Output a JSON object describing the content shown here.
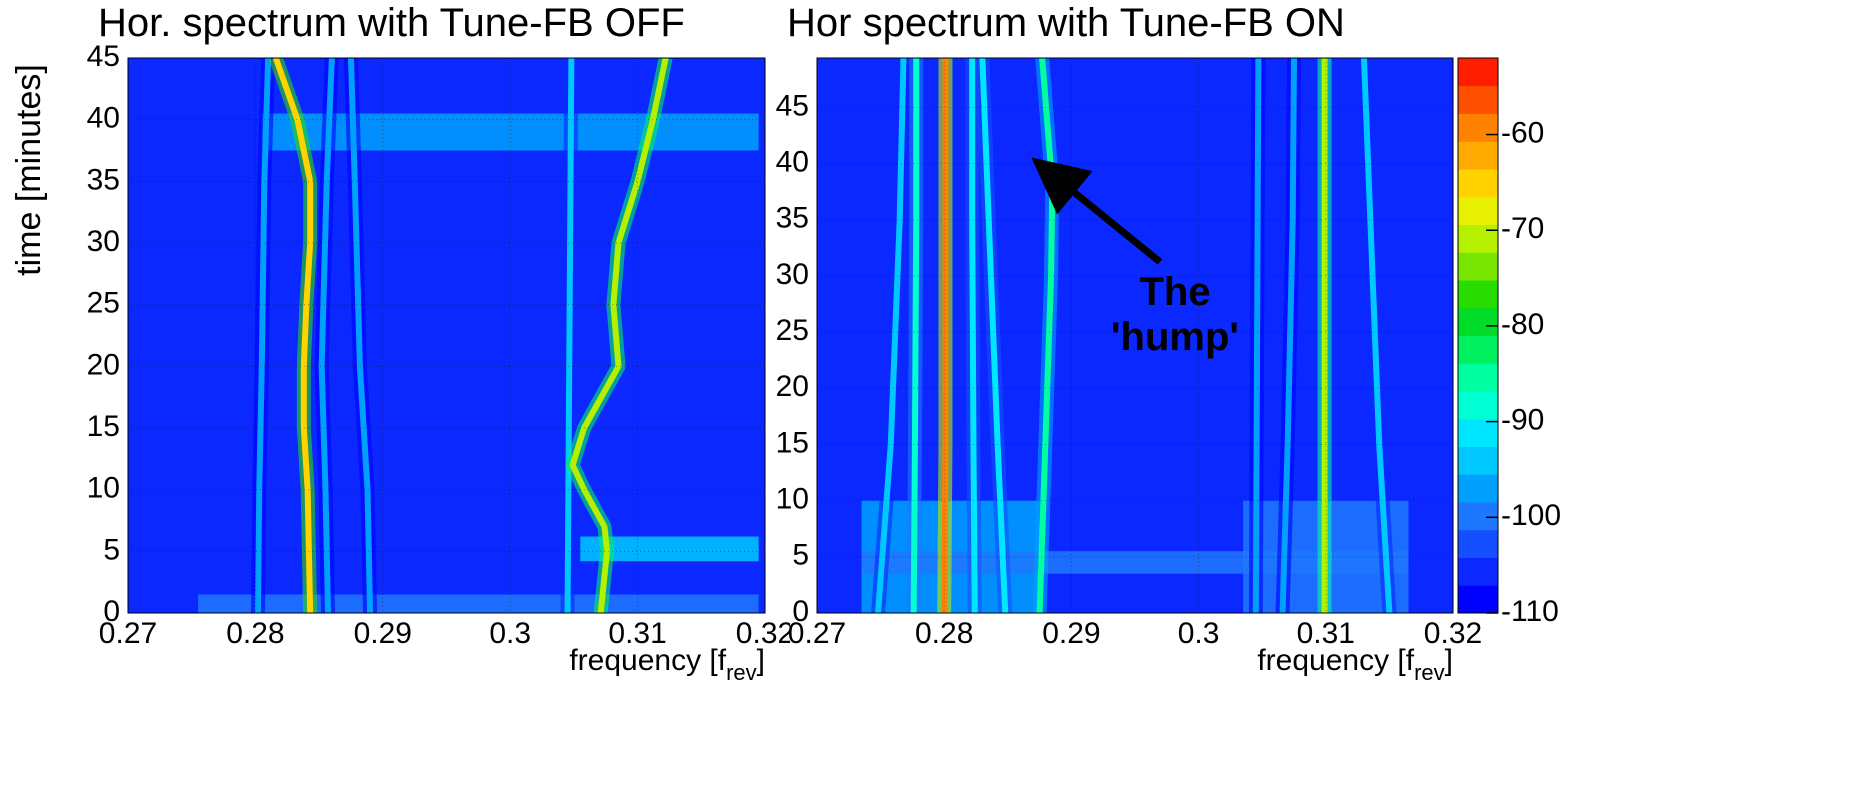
{
  "chart_data": [
    {
      "type": "spectrogram",
      "title": "Hor. spectrum with Tune-FB OFF",
      "x_label": "frequency [f",
      "x_label_sub": "rev",
      "x_label_end": "]",
      "y_label": "time [minutes]",
      "xlim": [
        0.27,
        0.32
      ],
      "xticks": [
        0.27,
        0.28,
        0.29,
        0.3,
        0.31,
        0.32
      ],
      "ylim": [
        0,
        45
      ],
      "yticks": [
        0,
        5,
        10,
        15,
        20,
        25,
        30,
        35,
        40,
        45
      ],
      "grid": true,
      "background_level": -106,
      "bands": [
        {
          "x": [
            0.2805,
            0.3195
          ],
          "y": [
            37.5,
            40.5
          ],
          "level": -98
        },
        {
          "x": [
            0.3055,
            0.3195
          ],
          "y": [
            4.2,
            6.2
          ],
          "level": -93
        },
        {
          "x": [
            0.2755,
            0.3195
          ],
          "y": [
            0,
            1.5
          ],
          "level": -100
        }
      ],
      "traces": [
        {
          "x": [
            0.2802,
            0.2803,
            0.2805,
            0.2807,
            0.281
          ],
          "y": [
            0,
            10,
            20,
            35,
            45
          ],
          "level": -96
        },
        {
          "x": [
            0.2857,
            0.2855,
            0.2852,
            0.2856,
            0.286
          ],
          "y": [
            0,
            10,
            20,
            35,
            45
          ],
          "level": -97
        },
        {
          "x": [
            0.289,
            0.2888,
            0.2882,
            0.2878,
            0.2875
          ],
          "y": [
            0,
            10,
            20,
            35,
            45
          ],
          "level": -98
        },
        {
          "x": [
            0.3045,
            0.3046,
            0.3047,
            0.3048
          ],
          "y": [
            0,
            15,
            30,
            45
          ],
          "level": -93
        },
        {
          "x": [
            0.2843,
            0.2841,
            0.2838,
            0.2838,
            0.284,
            0.2843,
            0.2843,
            0.2833,
            0.2816
          ],
          "y": [
            0,
            10,
            15,
            20,
            25,
            30,
            35,
            40,
            45
          ],
          "level": -66
        },
        {
          "x": [
            0.3071,
            0.3076,
            0.3074,
            0.3058,
            0.3049,
            0.3058,
            0.3085,
            0.3081,
            0.3085,
            0.31,
            0.3112,
            0.3122
          ],
          "y": [
            0,
            5,
            7,
            10,
            12,
            15,
            20,
            25,
            30,
            35,
            40,
            45
          ],
          "level": -70
        }
      ]
    },
    {
      "type": "spectrogram",
      "title": "Hor spectrum with Tune-FB ON",
      "x_label": "frequency [f",
      "x_label_sub": "rev",
      "x_label_end": "]",
      "xlim": [
        0.27,
        0.32
      ],
      "xticks": [
        0.27,
        0.28,
        0.29,
        0.3,
        0.31,
        0.32
      ],
      "ylim": [
        0,
        49.4
      ],
      "yticks": [
        0,
        5,
        10,
        15,
        20,
        25,
        30,
        35,
        40,
        45
      ],
      "grid": true,
      "background_level": -106,
      "annotation": [
        "The",
        "'hump'"
      ],
      "bands": [
        {
          "x": [
            0.2735,
            0.2875
          ],
          "y": [
            0,
            10
          ],
          "level": -98
        },
        {
          "x": [
            0.3035,
            0.3165
          ],
          "y": [
            0,
            10
          ],
          "level": -101
        },
        {
          "x": [
            0.2735,
            0.3165
          ],
          "y": [
            3.5,
            5.5
          ],
          "level": -99
        }
      ],
      "traces": [
        {
          "x": [
            0.2748,
            0.2758,
            0.2765,
            0.2768
          ],
          "y": [
            0,
            15,
            35,
            49.4
          ],
          "level": -95
        },
        {
          "x": [
            0.2776,
            0.2777,
            0.2778,
            0.2778
          ],
          "y": [
            0,
            15,
            35,
            49.4
          ],
          "level": -88
        },
        {
          "x": [
            0.2824,
            0.2823,
            0.2822,
            0.2822
          ],
          "y": [
            0,
            15,
            35,
            49.4
          ],
          "level": -90
        },
        {
          "x": [
            0.2848,
            0.2842,
            0.2835,
            0.283
          ],
          "y": [
            0,
            15,
            35,
            49.4
          ],
          "level": -92
        },
        {
          "x": [
            0.2875,
            0.2878,
            0.2881,
            0.2884,
            0.2885,
            0.2877
          ],
          "y": [
            0,
            10,
            20,
            30,
            38,
            49.4
          ],
          "level": -85
        },
        {
          "x": [
            0.3045,
            0.3046,
            0.3047
          ],
          "y": [
            0,
            25,
            49.4
          ],
          "level": -97
        },
        {
          "x": [
            0.3066,
            0.307,
            0.3074,
            0.3075
          ],
          "y": [
            0,
            15,
            35,
            49.4
          ],
          "level": -97
        },
        {
          "x": [
            0.315,
            0.3142,
            0.3135,
            0.313
          ],
          "y": [
            0,
            15,
            35,
            49.4
          ],
          "level": -93
        },
        {
          "x": [
            0.28,
            0.2801,
            0.2801,
            0.2801
          ],
          "y": [
            0,
            15,
            35,
            49.4
          ],
          "level": -58
        },
        {
          "x": [
            0.3099,
            0.3099,
            0.3099,
            0.3099
          ],
          "y": [
            0,
            15,
            35,
            49.4
          ],
          "level": -72
        }
      ]
    }
  ],
  "colorbar": {
    "zlim": [
      -110,
      -52
    ],
    "ticks": [
      -60,
      -70,
      -80,
      -90,
      -100,
      -110
    ],
    "colors": [
      "#0000ff",
      "#0a28ff",
      "#1450ff",
      "#1e78ff",
      "#00a0ff",
      "#00c8ff",
      "#00e6ff",
      "#00ffd2",
      "#00ffa0",
      "#00f060",
      "#00dc28",
      "#28dc00",
      "#78e600",
      "#b4f000",
      "#e6f000",
      "#ffd200",
      "#ffaa00",
      "#ff8200",
      "#ff5000",
      "#ff1e00"
    ]
  }
}
